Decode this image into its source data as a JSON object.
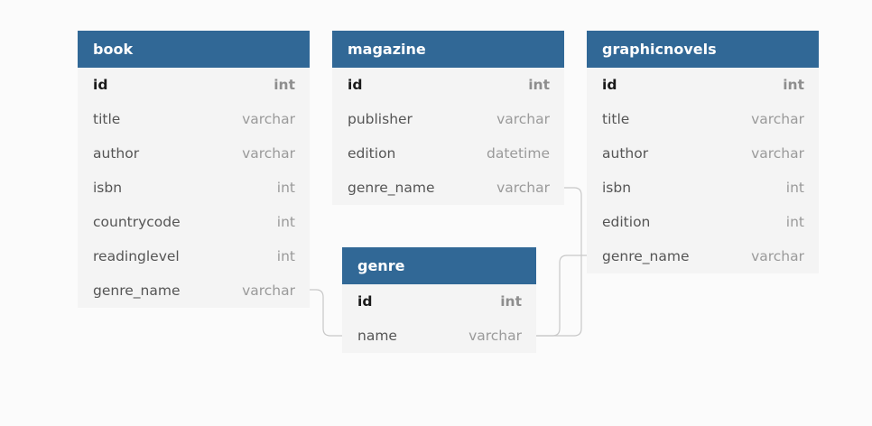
{
  "tables": {
    "book": {
      "name": "book",
      "fields": [
        {
          "name": "id",
          "type": "int",
          "pk": true
        },
        {
          "name": "title",
          "type": "varchar"
        },
        {
          "name": "author",
          "type": "varchar"
        },
        {
          "name": "isbn",
          "type": "int"
        },
        {
          "name": "countrycode",
          "type": "int"
        },
        {
          "name": "readinglevel",
          "type": "int"
        },
        {
          "name": "genre_name",
          "type": "varchar"
        }
      ]
    },
    "magazine": {
      "name": "magazine",
      "fields": [
        {
          "name": "id",
          "type": "int",
          "pk": true
        },
        {
          "name": "publisher",
          "type": "varchar"
        },
        {
          "name": "edition",
          "type": "datetime"
        },
        {
          "name": "genre_name",
          "type": "varchar"
        }
      ]
    },
    "graphicnovels": {
      "name": "graphicnovels",
      "fields": [
        {
          "name": "id",
          "type": "int",
          "pk": true
        },
        {
          "name": "title",
          "type": "varchar"
        },
        {
          "name": "author",
          "type": "varchar"
        },
        {
          "name": "isbn",
          "type": "int"
        },
        {
          "name": "edition",
          "type": "int"
        },
        {
          "name": "genre_name",
          "type": "varchar"
        }
      ]
    },
    "genre": {
      "name": "genre",
      "fields": [
        {
          "name": "id",
          "type": "int",
          "pk": true
        },
        {
          "name": "name",
          "type": "varchar"
        }
      ]
    }
  },
  "relations": [
    {
      "from": "book.genre_name",
      "to": "genre.name"
    },
    {
      "from": "magazine.genre_name",
      "to": "genre.name"
    },
    {
      "from": "graphicnovels.genre_name",
      "to": "genre.name"
    }
  ],
  "colors": {
    "header": "#316896",
    "body": "#f4f4f4",
    "background": "#fbfbfb",
    "connector": "#c8c8c8"
  }
}
